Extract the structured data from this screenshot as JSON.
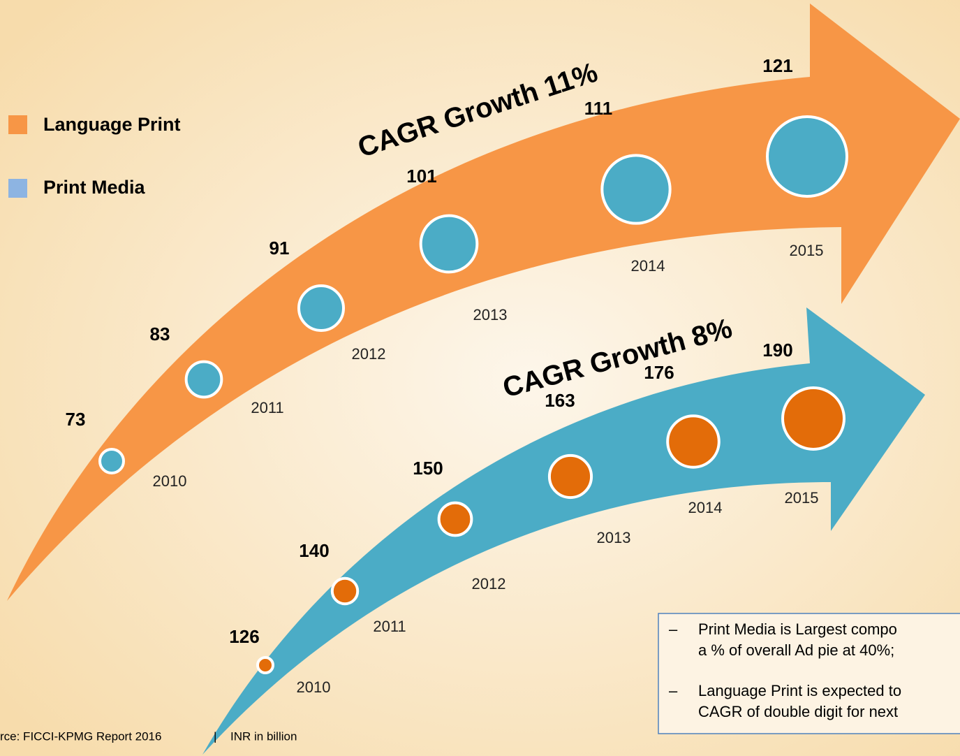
{
  "legend": [
    {
      "label": "Language Print",
      "color": "#f79646"
    },
    {
      "label": "Print Media",
      "color": "#8db4e2"
    }
  ],
  "arrows": [
    {
      "title": "CAGR Growth 11%",
      "color": "#f79646",
      "circle_color": "#4bacc6",
      "years": [
        "2010",
        "2011",
        "2012",
        "2013",
        "2014",
        "2015"
      ],
      "values": [
        73,
        83,
        91,
        101,
        111,
        121
      ]
    },
    {
      "title": "CAGR Growth 8%",
      "color": "#4bacc6",
      "circle_color": "#e36c09",
      "years": [
        "2010",
        "2011",
        "2012",
        "2013",
        "2014",
        "2015"
      ],
      "values": [
        126,
        140,
        150,
        163,
        176,
        190
      ]
    }
  ],
  "notes": [
    [
      "Print Media is Largest compo",
      "a % of overall Ad pie at 40%;"
    ],
    [
      "Language Print is expected to",
      "CAGR of double digit for next"
    ]
  ],
  "source": "rce: FICCI-KPMG Report 2016",
  "separator": "|",
  "unit": "INR in billion"
}
